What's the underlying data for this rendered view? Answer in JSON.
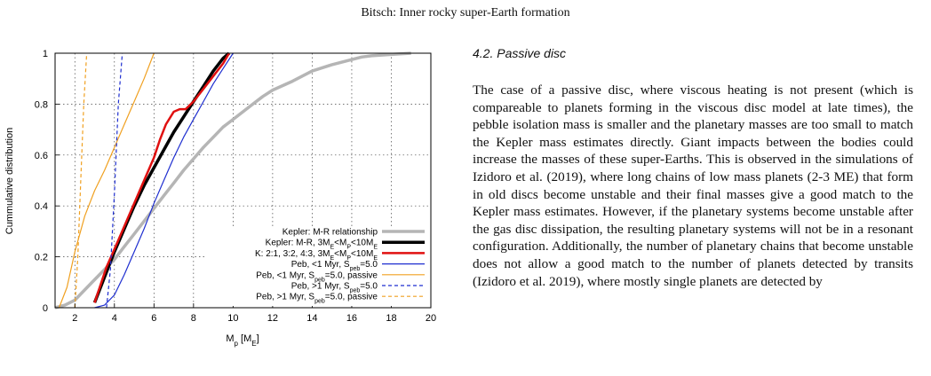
{
  "header": {
    "running_head": "Bitsch: Inner rocky super-Earth formation"
  },
  "section": {
    "title": "4.2. Passive disc",
    "paragraph": "The case of a passive disc, where viscous heating is not present (which is compareable to planets forming in the viscous disc model at late times), the pebble isolation mass is smaller and the planetary masses are too small to match the Kepler mass estimates directly. Giant impacts between the bodies could increase the masses of these super-Earths. This is observed in the simulations of Izidoro et al. (2019), where long chains of low mass planets (2-3 ME) that form in old discs become unstable and their final masses give a good match to the Kepler mass estimates. However, if the planetary systems become unstable after the gas disc dissipation, the resulting planetary systems will not be in a resonant configuration. Additionally, the number of planetary chains that become unstable does not allow a good match to the number of planets detected by transits (Izidoro et al. 2019), where mostly single planets are detected by"
  },
  "chart_data": {
    "type": "line",
    "xlabel": "Mp [ME]",
    "ylabel": "Cummulative distribution",
    "xlim": [
      1,
      20
    ],
    "ylim": [
      0,
      1
    ],
    "xticks": [
      "2",
      "4",
      "6",
      "8",
      "10",
      "12",
      "14",
      "16",
      "18",
      "20"
    ],
    "yticks": [
      "0",
      "0.2",
      "0.4",
      "0.6",
      "0.8",
      "1"
    ],
    "grid": true,
    "legend_position": "bottom-right",
    "series": [
      {
        "name": "Kepler: M-R relationship",
        "color": "#b5b5b5",
        "width": 3.5,
        "dash": "",
        "x": [
          1.0,
          1.5,
          2.0,
          2.5,
          3.0,
          3.5,
          4.0,
          4.5,
          5.0,
          5.5,
          6.0,
          6.5,
          7.0,
          7.5,
          8.0,
          8.5,
          9.0,
          9.5,
          10.0,
          10.5,
          11.0,
          11.5,
          12.0,
          13.0,
          14.0,
          15.0,
          16.0,
          16.5,
          17.0,
          18.0,
          19.0
        ],
        "y": [
          0,
          0.01,
          0.03,
          0.07,
          0.11,
          0.15,
          0.19,
          0.24,
          0.29,
          0.34,
          0.39,
          0.44,
          0.49,
          0.54,
          0.585,
          0.63,
          0.67,
          0.71,
          0.74,
          0.77,
          0.8,
          0.83,
          0.855,
          0.89,
          0.93,
          0.955,
          0.975,
          0.985,
          0.99,
          0.995,
          1.0
        ]
      },
      {
        "name": "Kepler: M-R, 3ME<Mp<10ME",
        "color": "#000000",
        "width": 3.5,
        "dash": "",
        "x": [
          3.0,
          3.3,
          3.6,
          4.0,
          4.5,
          5.0,
          5.5,
          6.0,
          6.5,
          7.0,
          7.5,
          8.0,
          8.5,
          9.0,
          9.5,
          9.8
        ],
        "y": [
          0.02,
          0.08,
          0.14,
          0.22,
          0.31,
          0.4,
          0.48,
          0.55,
          0.62,
          0.69,
          0.75,
          0.81,
          0.87,
          0.93,
          0.98,
          1.0
        ]
      },
      {
        "name": "K: 2:1, 3:2, 4:3, 3ME<Mp<10ME",
        "color": "#e01010",
        "width": 2.5,
        "dash": "",
        "x": [
          3.0,
          3.3,
          3.6,
          4.0,
          4.5,
          5.0,
          5.5,
          6.0,
          6.3,
          6.6,
          7.0,
          7.3,
          7.6,
          8.0,
          8.5,
          9.0,
          9.5,
          9.8
        ],
        "y": [
          0.02,
          0.09,
          0.16,
          0.23,
          0.32,
          0.41,
          0.5,
          0.59,
          0.66,
          0.72,
          0.77,
          0.78,
          0.78,
          0.81,
          0.86,
          0.91,
          0.96,
          1.0
        ]
      },
      {
        "name": "Peb, <1 Myr, Speb=5.0",
        "color": "#1f2fd0",
        "width": 1.2,
        "dash": "",
        "x": [
          3.0,
          3.5,
          4.0,
          4.5,
          5.0,
          5.5,
          6.0,
          6.5,
          7.0,
          7.5,
          8.0,
          8.5,
          9.0,
          9.5,
          10.0
        ],
        "y": [
          0,
          0.01,
          0.05,
          0.13,
          0.22,
          0.31,
          0.41,
          0.5,
          0.59,
          0.67,
          0.74,
          0.81,
          0.88,
          0.94,
          1.0
        ]
      },
      {
        "name": "Peb, <1 Myr, Speb=5.0, passive",
        "color": "#f0a020",
        "width": 1.2,
        "dash": "",
        "x": [
          1.2,
          1.6,
          2.0,
          2.5,
          3.0,
          3.5,
          4.0,
          4.5,
          5.0,
          5.5,
          6.0
        ],
        "y": [
          0,
          0.08,
          0.22,
          0.36,
          0.46,
          0.54,
          0.63,
          0.72,
          0.81,
          0.9,
          1.0
        ]
      },
      {
        "name": "Peb, >1 Myr, Speb=5.0",
        "color": "#1f2fd0",
        "width": 1.2,
        "dash": "4,3",
        "x": [
          3.6,
          3.8,
          4.0,
          4.2,
          4.4
        ],
        "y": [
          0,
          0.15,
          0.45,
          0.8,
          1.0
        ]
      },
      {
        "name": "Peb, >1 Myr, Speb=5.0, passive",
        "color": "#f0a020",
        "width": 1.2,
        "dash": "4,3",
        "x": [
          2.0,
          2.15,
          2.3,
          2.45,
          2.6
        ],
        "y": [
          0,
          0.2,
          0.5,
          0.8,
          1.0
        ]
      }
    ]
  }
}
